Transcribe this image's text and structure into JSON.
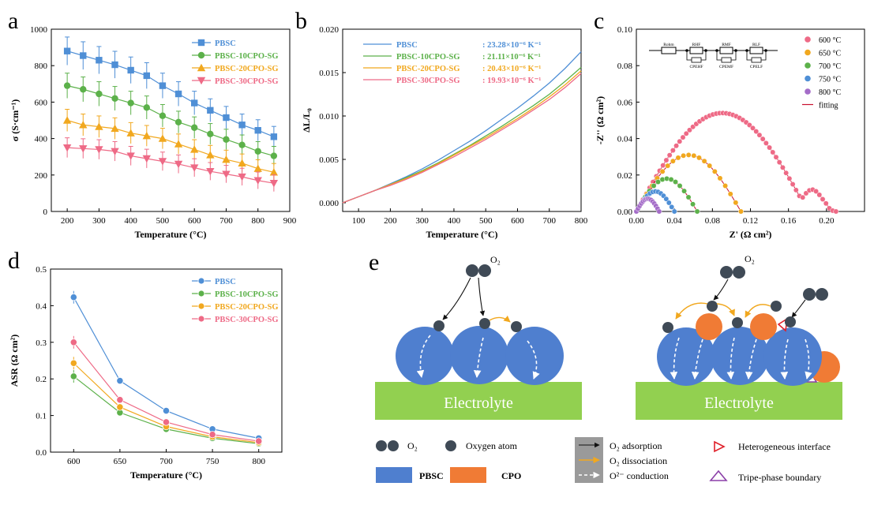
{
  "panel_labels": [
    "a",
    "b",
    "c",
    "d",
    "e"
  ],
  "colors": {
    "blue": "#4f8fd6",
    "green": "#5cb14a",
    "orange": "#f1a81f",
    "pink": "#ee6a86",
    "purple": "#a46cc8",
    "fit_red": "#c8102e",
    "ball_blue": "#4f7fcf",
    "cpo_orange": "#f07b35",
    "electrolyte": "#92d050",
    "atom": "#3f4a56"
  },
  "chart_data": [
    {
      "id": "a",
      "type": "line",
      "xlabel": "Temperature (°C)",
      "ylabel": "σ (S·cm⁻¹)",
      "xlim": [
        150,
        900
      ],
      "ylim": [
        0,
        1000
      ],
      "xticks": [
        200,
        300,
        400,
        500,
        600,
        700,
        800,
        900
      ],
      "yticks": [
        0,
        200,
        400,
        600,
        800,
        1000
      ],
      "x": [
        200,
        250,
        300,
        350,
        400,
        450,
        500,
        550,
        600,
        650,
        700,
        750,
        800,
        850
      ],
      "legend_position": "top-right",
      "series": [
        {
          "name": "PBSC",
          "marker": "square",
          "color": "#4f8fd6",
          "values": [
            880,
            855,
            830,
            805,
            775,
            745,
            690,
            645,
            595,
            555,
            515,
            475,
            445,
            410
          ]
        },
        {
          "name": "PBSC-10CPO-SG",
          "marker": "circle",
          "color": "#5cb14a",
          "values": [
            690,
            670,
            645,
            620,
            595,
            570,
            525,
            490,
            460,
            425,
            395,
            365,
            330,
            305
          ]
        },
        {
          "name": "PBSC-20CPO-SG",
          "marker": "triangle-up",
          "color": "#f1a81f",
          "values": [
            500,
            475,
            465,
            455,
            430,
            415,
            400,
            370,
            340,
            310,
            285,
            265,
            235,
            215
          ]
        },
        {
          "name": "PBSC-30CPO-SG",
          "marker": "triangle-down",
          "color": "#ee6a86",
          "values": [
            350,
            345,
            340,
            330,
            305,
            290,
            275,
            260,
            240,
            220,
            205,
            190,
            170,
            155
          ]
        }
      ]
    },
    {
      "id": "b",
      "type": "line",
      "xlabel": "Temperature (°C)",
      "ylabel": "ΔL/L₀",
      "xlim": [
        50,
        800
      ],
      "ylim": [
        -0.001,
        0.02
      ],
      "xticks": [
        100,
        200,
        300,
        400,
        500,
        600,
        700,
        800
      ],
      "yticks": [
        "0.000",
        "0.005",
        "0.010",
        "0.015",
        "0.020"
      ],
      "x": [
        50,
        100,
        150,
        200,
        250,
        300,
        350,
        400,
        450,
        500,
        550,
        600,
        650,
        700,
        750,
        800
      ],
      "legend_position": "top-left",
      "series": [
        {
          "name": "PBSC",
          "cte": ":  23.28×10⁻⁶ K⁻¹",
          "color": "#4f8fd6",
          "values": [
            0.0,
            0.0007,
            0.0014,
            0.0022,
            0.003,
            0.0039,
            0.0049,
            0.006,
            0.0071,
            0.0083,
            0.0096,
            0.0109,
            0.0123,
            0.0138,
            0.0155,
            0.0174
          ]
        },
        {
          "name": "PBSC-10CPO-SG",
          "cte": ":  21.11×10⁻⁶ K⁻¹",
          "color": "#5cb14a",
          "values": [
            0.0,
            0.0007,
            0.0014,
            0.0021,
            0.0029,
            0.0037,
            0.0046,
            0.0056,
            0.0066,
            0.0077,
            0.0088,
            0.01,
            0.0112,
            0.0125,
            0.014,
            0.0156
          ]
        },
        {
          "name": "PBSC-20CPO-SG",
          "cte": ":  20.43×10⁻⁶ K⁻¹",
          "color": "#f1a81f",
          "values": [
            0.0,
            0.0007,
            0.0014,
            0.0021,
            0.0028,
            0.0036,
            0.0045,
            0.0055,
            0.0065,
            0.0075,
            0.0086,
            0.0097,
            0.0109,
            0.0122,
            0.0136,
            0.0152
          ]
        },
        {
          "name": "PBSC-30CPO-SG",
          "cte": ":  19.93×10⁻⁶ K⁻¹",
          "color": "#ee6a86",
          "values": [
            0.0,
            0.0007,
            0.0014,
            0.002,
            0.0027,
            0.0035,
            0.0044,
            0.0053,
            0.0063,
            0.0073,
            0.0084,
            0.0095,
            0.0107,
            0.0119,
            0.0133,
            0.0149
          ]
        }
      ]
    },
    {
      "id": "c",
      "type": "scatter",
      "xlabel": "Z' (Ω cm²)",
      "ylabel": "-Z'' (Ω cm²)",
      "xlim": [
        0,
        0.24
      ],
      "ylim": [
        0,
        0.1
      ],
      "xticks": [
        "0.00",
        "0.04",
        "0.08",
        "0.12",
        "0.16",
        "0.20"
      ],
      "yticks": [
        "0.00",
        "0.02",
        "0.04",
        "0.06",
        "0.08",
        "0.10"
      ],
      "legend_position": "top-right",
      "series": [
        {
          "name": "600 °C",
          "color": "#ee6a86",
          "r0": 0.0,
          "r1": 0.21,
          "peak": 0.054,
          "shoulder": true
        },
        {
          "name": "650 °C",
          "color": "#f1a81f",
          "r0": 0.0,
          "r1": 0.11,
          "peak": 0.031,
          "shoulder": false
        },
        {
          "name": "700 °C",
          "color": "#5cb14a",
          "r0": 0.0,
          "r1": 0.064,
          "peak": 0.018,
          "shoulder": false
        },
        {
          "name": "750 °C",
          "color": "#4f8fd6",
          "r0": 0.0,
          "r1": 0.04,
          "peak": 0.011,
          "shoulder": false
        },
        {
          "name": "800 °C",
          "color": "#a46cc8",
          "r0": 0.0,
          "r1": 0.024,
          "peak": 0.007,
          "shoulder": false
        }
      ],
      "fit_label": "fitting",
      "circuit_labels": [
        "Rohm",
        "RHF",
        "CPEHF",
        "RMF",
        "CPEMF",
        "RLF",
        "CPELF"
      ]
    },
    {
      "id": "d",
      "type": "line",
      "xlabel": "Temperature (°C)",
      "ylabel": "ASR (Ω cm²)",
      "xlim": [
        575,
        825
      ],
      "ylim": [
        0,
        0.5
      ],
      "xticks": [
        600,
        650,
        700,
        750,
        800
      ],
      "yticks": [
        "0.0",
        "0.1",
        "0.2",
        "0.3",
        "0.4",
        "0.5"
      ],
      "x": [
        600,
        650,
        700,
        750,
        800
      ],
      "legend_position": "top-right",
      "series": [
        {
          "name": "PBSC",
          "color": "#4f8fd6",
          "values": [
            0.423,
            0.195,
            0.113,
            0.063,
            0.038
          ]
        },
        {
          "name": "PBSC-10CPO-SG",
          "color": "#5cb14a",
          "values": [
            0.207,
            0.108,
            0.063,
            0.038,
            0.023
          ]
        },
        {
          "name": "PBSC-20CPO-SG",
          "color": "#f1a81f",
          "values": [
            0.243,
            0.123,
            0.07,
            0.042,
            0.026
          ]
        },
        {
          "name": "PBSC-30CPO-SG",
          "color": "#ee6a86",
          "values": [
            0.3,
            0.143,
            0.082,
            0.048,
            0.03
          ]
        }
      ]
    }
  ],
  "diagram": {
    "electrolyte_label": "Electrolyte",
    "o2_label": "O₂",
    "legend": {
      "o2": "O₂",
      "oxygen_atom": "Oxygen atom",
      "pbsc": "PBSC",
      "cpo": "CPO",
      "adsorption": "O₂ adsorption",
      "dissociation": "O₂ dissociation",
      "conduction": "O²⁻ conduction",
      "hetero": "Heterogeneous interface",
      "tpb": "Tripe-phase boundary"
    }
  }
}
